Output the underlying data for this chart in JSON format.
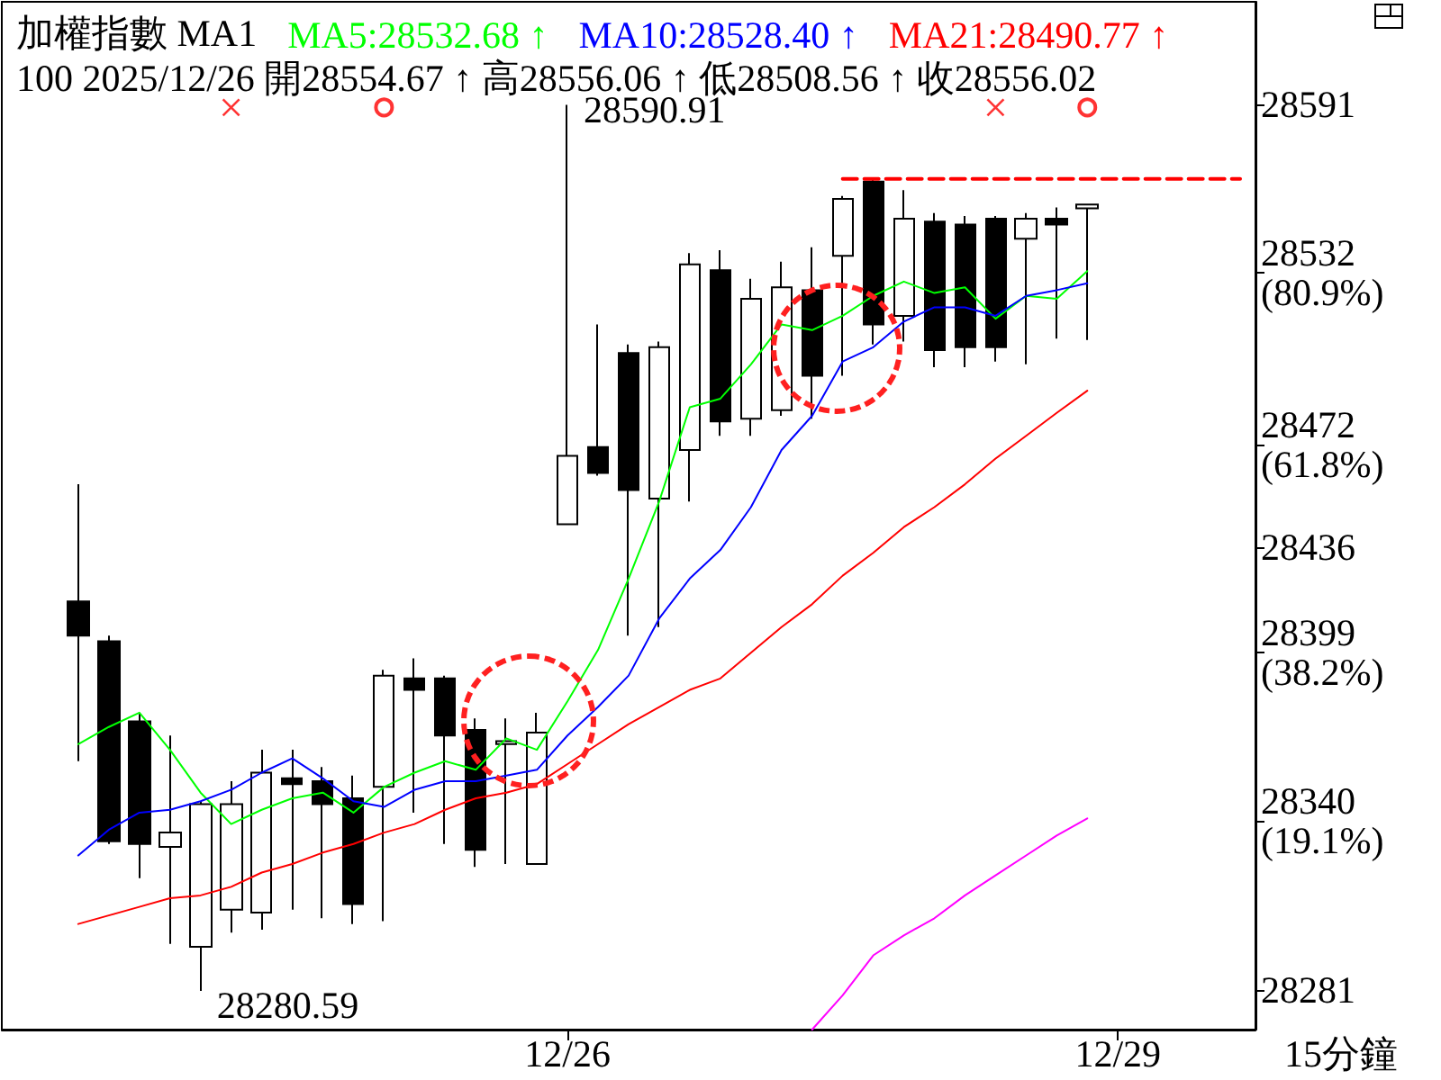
{
  "chart_data": {
    "type": "candlestick",
    "title": "加權指數 MA1",
    "subtitle": "100 2025/12/26 開28554.67 ↑ 高28556.06 ↑ 低28508.56 ↑ 收28556.02",
    "xlabel": "15分鐘",
    "color": "#000000",
    "legend": "top right",
    "categories": [
      null,
      null,
      null,
      null,
      null,
      null,
      null,
      null,
      null,
      null,
      null,
      null,
      null,
      null,
      null,
      null,
      null,
      null,
      "12/26",
      null,
      null,
      null,
      null,
      null,
      null,
      null,
      null,
      null,
      null,
      null,
      null,
      null,
      null,
      null,
      null,
      null,
      "12/29",
      null,
      null,
      null,
      null
    ],
    "ohlc": [
      null,
      null,
      [
        28417,
        28458,
        28361,
        28405
      ],
      [
        28403,
        28405,
        28332,
        28333
      ],
      [
        28375,
        28378,
        28320,
        28332
      ],
      [
        28331,
        28370,
        28297,
        28336
      ],
      [
        28296,
        28347,
        28280.59,
        28346
      ],
      [
        28309,
        28354,
        28301,
        28346
      ],
      [
        28308,
        28365,
        28302,
        28357
      ],
      [
        28355,
        28365,
        28309,
        28353
      ],
      [
        28354,
        28359,
        28306,
        28346
      ],
      [
        28348,
        28356,
        28304,
        28311
      ],
      [
        28352,
        28393,
        28305,
        28391
      ],
      [
        28390,
        28397,
        28343,
        28386
      ],
      [
        28390,
        28391,
        28332,
        28370
      ],
      [
        28372,
        28376,
        28324,
        28330
      ],
      [
        28367,
        28376,
        28325,
        28368
      ],
      [
        28325,
        28378,
        28325,
        28371
      ],
      [
        28444,
        28590.91,
        28444,
        28468
      ],
      [
        28471,
        28514,
        28461,
        28462
      ],
      [
        28504,
        28507,
        28405,
        28456
      ],
      [
        28453,
        28508,
        28408,
        28506
      ],
      [
        28470,
        28539,
        28452,
        28535
      ],
      [
        28533,
        28540,
        28475,
        28480
      ],
      [
        28481,
        28530,
        28475,
        28523
      ],
      [
        28484,
        28536,
        28482,
        28527
      ],
      [
        28526,
        28541,
        28481,
        28496
      ],
      [
        28538,
        28559,
        28496,
        28558
      ],
      [
        28564,
        28565,
        28507,
        28514
      ],
      [
        28517,
        28561,
        28508,
        28551
      ],
      [
        28550,
        28553,
        28499,
        28505
      ],
      [
        28549,
        28552,
        28499,
        28506
      ],
      [
        28551,
        28552,
        28501,
        28506
      ],
      [
        28544,
        28553,
        28500,
        28551
      ],
      [
        28551,
        28555,
        28509,
        28549
      ],
      [
        28554.67,
        28556.06,
        28508.56,
        28556.02
      ],
      null,
      null,
      null,
      null,
      null
    ],
    "value_labels": [
      null,
      null,
      null,
      null,
      null,
      null,
      "28280.59",
      null,
      null,
      null,
      null,
      null,
      null,
      null,
      null,
      null,
      null,
      null,
      "28590.91",
      null,
      null,
      null,
      null,
      null,
      null,
      null,
      null,
      null,
      null,
      null,
      null,
      null,
      null,
      null,
      null,
      null,
      null,
      null,
      null,
      null,
      null
    ],
    "series": [
      {
        "type": "line",
        "name": "MA5:28532.68 ↑",
        "color": "#00ff00",
        "values": [
          null,
          null,
          28367,
          28373,
          28378,
          28365,
          28350,
          28339,
          28344,
          28348,
          28350,
          28343,
          28352,
          28357,
          28361,
          28358,
          28369,
          28365,
          28382,
          28400,
          28425,
          28452,
          28485,
          28488,
          28500,
          28514,
          28512,
          28517,
          28524,
          28529,
          28525,
          28527,
          28516,
          28524,
          28523,
          28532.68,
          null,
          null,
          null,
          null,
          null
        ]
      },
      {
        "type": "line",
        "name": "MA10:28528.40 ↑",
        "color": "#0000ff",
        "values": [
          null,
          null,
          28328,
          28337,
          28343,
          28344,
          28347,
          28351,
          28357,
          28362,
          28355,
          28347,
          28345,
          28351,
          28354,
          28354,
          28356,
          28358,
          28370,
          28380,
          28391,
          28411,
          28425,
          28435,
          28450,
          28470,
          28482,
          28501,
          28506,
          28515,
          28520,
          28520,
          28517,
          28524,
          28526,
          28528.4,
          null,
          null,
          null,
          null,
          null
        ]
      },
      {
        "type": "line",
        "name": "MA21:28490.77 ↑",
        "color": "#ff0000",
        "values": [
          null,
          null,
          28304,
          28307,
          28310,
          28313,
          28314,
          28317,
          28322,
          28325,
          28329,
          28332,
          28336,
          28339,
          28344,
          28348,
          28350,
          28353,
          28360,
          28367,
          28374,
          28380,
          28386,
          28390,
          28399,
          28408,
          28416,
          28426,
          28434,
          28443,
          28450,
          28458,
          28467,
          28475,
          28483,
          28490.77,
          null,
          null,
          null,
          null,
          null
        ]
      },
      {
        "type": "line",
        "color": "#ff00ff",
        "values": [
          null,
          null,
          null,
          null,
          null,
          null,
          null,
          null,
          null,
          null,
          null,
          null,
          null,
          null,
          null,
          null,
          null,
          null,
          null,
          null,
          null,
          null,
          null,
          null,
          null,
          null,
          28267,
          28279,
          28293,
          28300,
          28306,
          28314,
          28321,
          28328,
          28335,
          28341,
          null,
          null,
          null,
          null,
          null
        ]
      },
      {
        "type": "line",
        "color": "#ff0000",
        "line_style": "dashed",
        "values": [
          null,
          null,
          null,
          null,
          null,
          null,
          null,
          null,
          null,
          null,
          null,
          null,
          null,
          null,
          null,
          null,
          null,
          null,
          null,
          null,
          null,
          null,
          null,
          null,
          null,
          null,
          null,
          28565,
          28565,
          28565,
          28565,
          28565,
          28565,
          28565,
          28565,
          28565,
          28565,
          28565,
          28565,
          28565,
          28565
        ]
      },
      {
        "type": "scatter",
        "color": "#ff0000",
        "marker": "cross",
        "values": [
          null,
          null,
          null,
          null,
          null,
          null,
          null,
          28590,
          null,
          null,
          null,
          null,
          null,
          null,
          null,
          null,
          null,
          null,
          null,
          null,
          null,
          null,
          null,
          null,
          null,
          null,
          null,
          null,
          null,
          null,
          null,
          null,
          28590,
          null,
          null,
          null,
          null,
          null,
          null,
          null,
          null
        ]
      },
      {
        "type": "scatter",
        "color": "#ff0000",
        "marker": "circle",
        "values": [
          null,
          null,
          null,
          null,
          null,
          null,
          null,
          null,
          null,
          null,
          null,
          null,
          28590,
          null,
          null,
          null,
          null,
          null,
          null,
          null,
          null,
          null,
          null,
          null,
          null,
          null,
          null,
          null,
          null,
          null,
          null,
          null,
          null,
          null,
          null,
          28590,
          null,
          null,
          null,
          null,
          null
        ]
      }
    ],
    "ylim": [
      28267,
      28627
    ],
    "yticks": [
      28591,
      {
        "value": 28532,
        "label": "28532\n(80.9%)"
      },
      {
        "value": 28472,
        "label": "28472\n(61.8%)"
      },
      28436,
      {
        "value": 28399,
        "label": "28399\n(38.2%)"
      },
      {
        "value": 28340,
        "label": "28340\n(19.1%)"
      },
      28281
    ]
  }
}
